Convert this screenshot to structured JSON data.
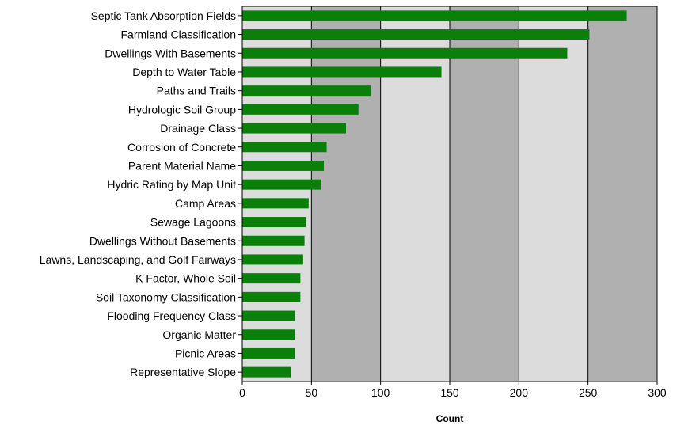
{
  "chart_data": {
    "type": "bar",
    "orientation": "horizontal",
    "title": "",
    "xlabel": "Count",
    "ylabel": "",
    "xlim": [
      0,
      300
    ],
    "x_ticks": [
      0,
      50,
      100,
      150,
      200,
      250,
      300
    ],
    "grid": true,
    "legend": "none",
    "categories": [
      "Septic Tank Absorption Fields",
      "Farmland Classification",
      "Dwellings With Basements",
      "Depth to Water Table",
      "Paths and Trails",
      "Hydrologic Soil Group",
      "Drainage Class",
      "Corrosion of Concrete",
      "Parent Material Name",
      "Hydric Rating by Map Unit",
      "Camp Areas",
      "Sewage Lagoons",
      "Dwellings Without Basements",
      "Lawns, Landscaping, and Golf Fairways",
      "K Factor, Whole Soil",
      "Soil Taxonomy Classification",
      "Flooding Frequency Class",
      "Organic Matter",
      "Picnic Areas",
      "Representative Slope"
    ],
    "values": [
      278,
      251,
      235,
      144,
      93,
      84,
      75,
      61,
      59,
      57,
      48,
      46,
      45,
      44,
      42,
      42,
      38,
      38,
      38,
      35
    ],
    "colors": {
      "bar": "#0a7f0a",
      "band_light": "#dcdcdc",
      "band_dark": "#b0b0b0",
      "grid_line": "#000000",
      "axis": "#000000"
    }
  }
}
